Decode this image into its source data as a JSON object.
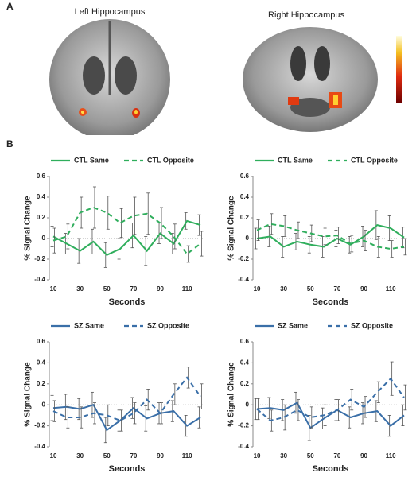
{
  "figure": {
    "panel_a": "A",
    "panel_b": "B",
    "left_title": "Left Hippocampus",
    "right_title": "Right Hippocampus"
  },
  "chart_data": [
    {
      "type": "line",
      "xlabel": "Seconds",
      "ylabel": "% Signal Change",
      "x": [
        10,
        20,
        30,
        40,
        50,
        60,
        70,
        80,
        90,
        100,
        110,
        120
      ],
      "xlim": [
        7,
        123
      ],
      "xticks": [
        10,
        30,
        50,
        70,
        90,
        110
      ],
      "ylim": [
        -0.4,
        0.6
      ],
      "yticks": [
        -0.4,
        -0.2,
        0,
        0.2,
        0.4,
        0.6
      ],
      "series": [
        {
          "name": "CTL Same",
          "color": "#2fae5c",
          "linestyle": "solid",
          "values": [
            0.02,
            -0.05,
            -0.12,
            -0.03,
            -0.16,
            -0.1,
            0.03,
            -0.12,
            0.05,
            -0.05,
            0.17,
            0.13
          ],
          "errors": [
            0.1,
            0.1,
            0.12,
            0.12,
            0.12,
            0.1,
            0.12,
            0.14,
            0.1,
            0.1,
            0.08,
            0.1
          ]
        },
        {
          "name": "CTL Opposite",
          "color": "#2fae5c",
          "linestyle": "dashed",
          "values": [
            -0.02,
            0.02,
            0.25,
            0.3,
            0.25,
            0.15,
            0.22,
            0.24,
            0.15,
            0.02,
            -0.15,
            -0.05
          ],
          "errors": [
            0.12,
            0.12,
            0.15,
            0.2,
            0.16,
            0.14,
            0.18,
            0.2,
            0.15,
            0.12,
            0.08,
            0.12
          ]
        }
      ]
    },
    {
      "type": "line",
      "xlabel": "Seconds",
      "ylabel": "% Signal Change",
      "x": [
        10,
        20,
        30,
        40,
        50,
        60,
        70,
        80,
        90,
        100,
        110,
        120
      ],
      "xlim": [
        7,
        123
      ],
      "xticks": [
        10,
        30,
        50,
        70,
        90,
        110
      ],
      "ylim": [
        -0.4,
        0.6
      ],
      "yticks": [
        -0.4,
        -0.2,
        0,
        0.2,
        0.4,
        0.6
      ],
      "series": [
        {
          "name": "CTL Same",
          "color": "#2fae5c",
          "linestyle": "solid",
          "values": [
            0,
            0.02,
            -0.08,
            -0.03,
            -0.06,
            -0.08,
            0,
            -0.06,
            0.02,
            0.13,
            0.1,
            0.01
          ],
          "errors": [
            0.1,
            0.1,
            0.1,
            0.08,
            0.08,
            0.1,
            0.08,
            0.08,
            0.1,
            0.14,
            0.12,
            0.1
          ]
        },
        {
          "name": "CTL Opposite",
          "color": "#2fae5c",
          "linestyle": "dashed",
          "values": [
            0.08,
            0.14,
            0.12,
            0.08,
            0.05,
            0.02,
            0.03,
            -0.05,
            -0.02,
            -0.08,
            -0.1,
            -0.08
          ],
          "errors": [
            0.1,
            0.1,
            0.1,
            0.08,
            0.08,
            0.08,
            0.08,
            0.08,
            0.1,
            0.1,
            0.08,
            0.08
          ]
        }
      ]
    },
    {
      "type": "line",
      "xlabel": "Seconds",
      "ylabel": "% Signal Change",
      "x": [
        10,
        20,
        30,
        40,
        50,
        60,
        70,
        80,
        90,
        100,
        110,
        120
      ],
      "xlim": [
        7,
        123
      ],
      "xticks": [
        10,
        30,
        50,
        70,
        90,
        110
      ],
      "ylim": [
        -0.4,
        0.6
      ],
      "yticks": [
        -0.4,
        -0.2,
        0,
        0.2,
        0.4,
        0.6
      ],
      "series": [
        {
          "name": "SZ Same",
          "color": "#3a6fa8",
          "linestyle": "solid",
          "values": [
            -0.03,
            -0.02,
            -0.04,
            0,
            -0.24,
            -0.15,
            -0.03,
            -0.13,
            -0.08,
            -0.06,
            -0.2,
            -0.12
          ],
          "errors": [
            0.12,
            0.12,
            0.1,
            0.12,
            0.12,
            0.1,
            0.1,
            0.12,
            0.1,
            0.1,
            0.1,
            0.1
          ]
        },
        {
          "name": "SZ Opposite",
          "color": "#3a6fa8",
          "linestyle": "dashed",
          "values": [
            -0.06,
            -0.12,
            -0.12,
            -0.08,
            -0.1,
            -0.15,
            -0.08,
            0.05,
            -0.08,
            0.1,
            0.26,
            0.08
          ],
          "errors": [
            0.1,
            0.1,
            0.1,
            0.1,
            0.1,
            0.1,
            0.1,
            0.1,
            0.1,
            0.1,
            0.1,
            0.12
          ]
        }
      ]
    },
    {
      "type": "line",
      "xlabel": "Seconds",
      "ylabel": "% Signal Change",
      "x": [
        10,
        20,
        30,
        40,
        50,
        60,
        70,
        80,
        90,
        100,
        110,
        120
      ],
      "xlim": [
        7,
        123
      ],
      "xticks": [
        10,
        30,
        50,
        70,
        90,
        110
      ],
      "ylim": [
        -0.4,
        0.6
      ],
      "yticks": [
        -0.4,
        -0.2,
        0,
        0.2,
        0.4,
        0.6
      ],
      "series": [
        {
          "name": "SZ Same",
          "color": "#3a6fa8",
          "linestyle": "solid",
          "values": [
            -0.04,
            -0.03,
            -0.05,
            0.02,
            -0.22,
            -0.13,
            -0.05,
            -0.12,
            -0.08,
            -0.06,
            -0.2,
            -0.1
          ],
          "errors": [
            0.1,
            0.1,
            0.1,
            0.1,
            0.12,
            0.1,
            0.1,
            0.1,
            0.1,
            0.1,
            0.1,
            0.1
          ]
        },
        {
          "name": "SZ Opposite",
          "color": "#3a6fa8",
          "linestyle": "dashed",
          "values": [
            -0.04,
            -0.15,
            -0.12,
            -0.05,
            -0.12,
            -0.1,
            -0.05,
            0.05,
            -0.02,
            0.12,
            0.25,
            0.07
          ],
          "errors": [
            0.1,
            0.1,
            0.12,
            0.1,
            0.1,
            0.1,
            0.1,
            0.1,
            0.1,
            0.1,
            0.16,
            0.12
          ]
        }
      ]
    }
  ]
}
